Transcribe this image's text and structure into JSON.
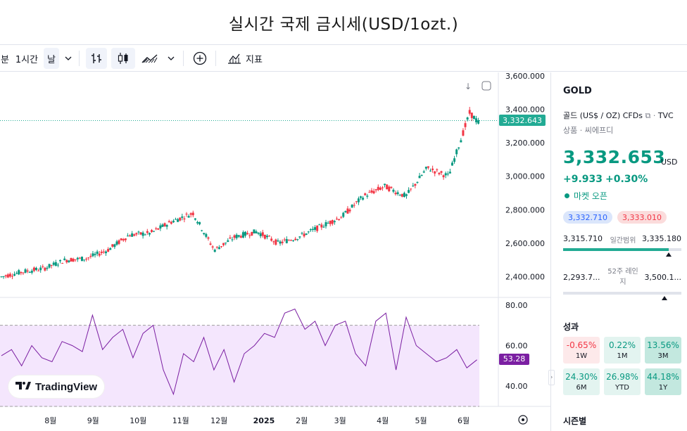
{
  "page_title": "실시간 국제 금시세(USD/1ozt.)",
  "toolbar": {
    "minute_partial": "분",
    "interval": "1시간",
    "day": "날",
    "indicators": "지표"
  },
  "chart_data": {
    "type": "line",
    "title": "",
    "price_axis": {
      "ticks": [
        "3,600.000",
        "3,400.000",
        "3,200.000",
        "3,000.000",
        "2,800.000",
        "2,600.000",
        "2,400.000"
      ],
      "range": [
        2340,
        3620
      ]
    },
    "rsi_axis": {
      "ticks": [
        "80.00",
        "60.00",
        "40.00"
      ],
      "range": [
        30,
        82
      ],
      "band": [
        30,
        70
      ]
    },
    "x_ticks": [
      "8월",
      "9월",
      "10월",
      "11월",
      "12월",
      "2025",
      "2월",
      "3월",
      "4월",
      "5월",
      "6월"
    ],
    "series": [
      {
        "x": [
          0.0,
          0.5,
          1.0,
          1.5,
          2.0,
          2.5,
          3.0,
          3.5,
          4.0,
          4.5,
          5.0,
          5.5,
          6.0,
          6.5,
          7.0,
          7.5,
          8.0,
          8.5,
          9.0,
          9.5,
          10.0,
          10.5,
          11.0,
          11.2
        ],
        "values": [
          2400,
          2430,
          2450,
          2500,
          2510,
          2560,
          2650,
          2660,
          2730,
          2780,
          2560,
          2640,
          2670,
          2600,
          2640,
          2700,
          2760,
          2880,
          2940,
          2880,
          3050,
          3000,
          3380,
          3320
        ]
      }
    ],
    "rsi_series": {
      "values": [
        55,
        58,
        50,
        60,
        54,
        52,
        62,
        60,
        57,
        75,
        58,
        64,
        68,
        54,
        66,
        70,
        48,
        36,
        56,
        52,
        64,
        48,
        58,
        42,
        56,
        60,
        66,
        64,
        76,
        78,
        68,
        72,
        60,
        70,
        72,
        56,
        50,
        72,
        76,
        48,
        74,
        60,
        56,
        52,
        54,
        58,
        49,
        53
      ]
    },
    "current_price": "3,332.643",
    "current_rsi": "53.28"
  },
  "right_panel": {
    "symbol": "GOLD",
    "description": "골드 (US$ / OZ) CFDs",
    "exchange": "TVC",
    "category": "상품 · 씨에프디",
    "price": "3,332.653",
    "currency": "USD",
    "change": "+9.933",
    "change_pct": "+0.30%",
    "market_status": "마켓 오픈",
    "bid": "3,332.710",
    "ask": "3,333.010",
    "day_range": {
      "low": "3,315.710",
      "label": "일간범위",
      "high": "3,335.180",
      "position": 0.89
    },
    "week52_range": {
      "low": "2,293.7...",
      "label": "52주 레인지",
      "high": "3,500.1...",
      "position": 0.86
    },
    "performance_title": "성과",
    "performance": [
      {
        "value": "-0.65%",
        "period": "1W",
        "tone": "neg"
      },
      {
        "value": "0.22%",
        "period": "1M",
        "tone": "pos1"
      },
      {
        "value": "13.56%",
        "period": "3M",
        "tone": "pos2"
      },
      {
        "value": "24.30%",
        "period": "6M",
        "tone": "pos1"
      },
      {
        "value": "26.98%",
        "period": "YTD",
        "tone": "pos1"
      },
      {
        "value": "44.18%",
        "period": "1Y",
        "tone": "pos2"
      }
    ],
    "seasonals_title": "시즌별"
  },
  "watermark": "TradingView"
}
